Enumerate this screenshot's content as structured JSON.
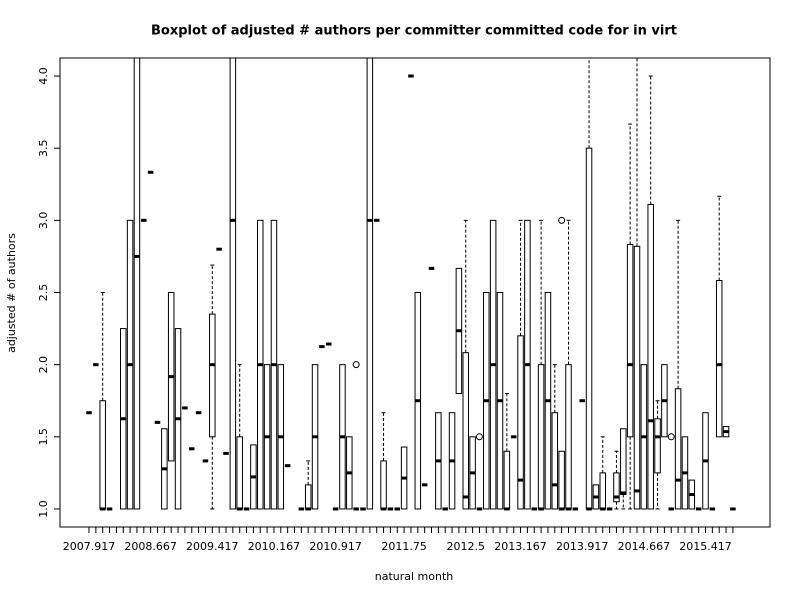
{
  "chart_data": {
    "type": "boxplot",
    "title": "Boxplot of adjusted # authors per committer committed code for in virt",
    "x_label": "natural month",
    "y_label": "adjusted # of authors",
    "categories": [
      "2007.917",
      null,
      null,
      null,
      null,
      null,
      null,
      null,
      null,
      "2008.667",
      null,
      null,
      null,
      null,
      null,
      null,
      null,
      null,
      "2009.417",
      null,
      null,
      null,
      null,
      null,
      null,
      null,
      null,
      "2010.167",
      null,
      null,
      null,
      null,
      null,
      null,
      null,
      null,
      "2010.917",
      null,
      null,
      null,
      null,
      null,
      null,
      null,
      null,
      null,
      "2011.75",
      null,
      null,
      null,
      null,
      null,
      null,
      null,
      null,
      "2012.5",
      null,
      null,
      null,
      null,
      null,
      null,
      null,
      "2013.167",
      null,
      null,
      null,
      null,
      null,
      null,
      null,
      null,
      "2013.917",
      null,
      null,
      null,
      null,
      null,
      null,
      null,
      null,
      "2014.667",
      null,
      null,
      null,
      null,
      null,
      null,
      null,
      null,
      "2015.417",
      null,
      null,
      null,
      null
    ],
    "boxes": [
      [
        1.667,
        1.667,
        1.667,
        1.667,
        1.667
      ],
      [
        2,
        2,
        2,
        2,
        2
      ],
      [
        1,
        1,
        1,
        1.75,
        2.5
      ],
      [
        1,
        1,
        1,
        1,
        1
      ],
      null,
      [
        1,
        1,
        1.625,
        2.25,
        2.25
      ],
      [
        1,
        1,
        2,
        3,
        3
      ],
      [
        1,
        1,
        2.75,
        4.3,
        4.3
      ],
      [
        3,
        3,
        3,
        3,
        3
      ],
      [
        3.333,
        3.333,
        3.333,
        3.333,
        3.333
      ],
      [
        1.6,
        1.6,
        1.6,
        1.6,
        1.6
      ],
      [
        1,
        1,
        1.278,
        1.556,
        1.556
      ],
      [
        1.333,
        1.333,
        1.917,
        2.5,
        2.5
      ],
      [
        1,
        1,
        1.625,
        2.25,
        2.25
      ],
      [
        1.7,
        1.7,
        1.7,
        1.7,
        1.7
      ],
      [
        1.417,
        1.417,
        1.417,
        1.417,
        1.417
      ],
      [
        1.667,
        1.667,
        1.667,
        1.667,
        1.667
      ],
      [
        1.333,
        1.333,
        1.333,
        1.333,
        1.333
      ],
      [
        1,
        1.5,
        2,
        2.35,
        2.69
      ],
      [
        2.8,
        2.8,
        2.8,
        2.8,
        2.8
      ],
      [
        1.385,
        1.385,
        1.385,
        1.385,
        1.385
      ],
      [
        1,
        1,
        3,
        4.3,
        4.3
      ],
      [
        1,
        1,
        1,
        1.5,
        2
      ],
      [
        1,
        1,
        1,
        1,
        1
      ],
      [
        1,
        1,
        1.222,
        1.444,
        1.444
      ],
      [
        1,
        1,
        2,
        3,
        3
      ],
      [
        1,
        1,
        1.5,
        2,
        2
      ],
      [
        1,
        1,
        2,
        3,
        3
      ],
      [
        1,
        1,
        1.5,
        2,
        2
      ],
      [
        1.3,
        1.3,
        1.3,
        1.3,
        1.3
      ],
      null,
      [
        1,
        1,
        1,
        1,
        1
      ],
      [
        1,
        1,
        1,
        1.167,
        1.333
      ],
      [
        1,
        1,
        1.5,
        2,
        2
      ],
      [
        2.125,
        2.125,
        2.125,
        2.125,
        2.125
      ],
      [
        2.143,
        2.143,
        2.143,
        2.143,
        2.143
      ],
      [
        1,
        1,
        1,
        1,
        1
      ],
      [
        1,
        1,
        1.5,
        2,
        2
      ],
      [
        1,
        1,
        1.25,
        1.5,
        1.5
      ],
      [
        1,
        1,
        1,
        1,
        1
      ],
      [
        1,
        1,
        1,
        1,
        1
      ],
      [
        1,
        1,
        3,
        4.3,
        4.3
      ],
      [
        3,
        3,
        3,
        3,
        3
      ],
      [
        1,
        1,
        1,
        1.333,
        1.667
      ],
      [
        1,
        1,
        1,
        1,
        1
      ],
      [
        1,
        1,
        1,
        1,
        1
      ],
      [
        1,
        1,
        1.214,
        1.429,
        1.429
      ],
      [
        4,
        4,
        4,
        4,
        4
      ],
      [
        1,
        1,
        1.75,
        2.5,
        2.5
      ],
      [
        1.167,
        1.167,
        1.167,
        1.167,
        1.167
      ],
      [
        2.667,
        2.667,
        2.667,
        2.667,
        2.667
      ],
      [
        1,
        1,
        1.333,
        1.667,
        1.667
      ],
      [
        1,
        1,
        1,
        1,
        1
      ],
      [
        1,
        1,
        1.333,
        1.667,
        1.667
      ],
      [
        1.8,
        1.8,
        2.235,
        2.667,
        2.667
      ],
      [
        1,
        1,
        1.083,
        2.083,
        3
      ],
      [
        1,
        1,
        1.25,
        1.5,
        1.5
      ],
      [
        1,
        1,
        1,
        1,
        1
      ],
      [
        1,
        1,
        1.75,
        2.5,
        2.5
      ],
      [
        1,
        1,
        2,
        3,
        3
      ],
      [
        1,
        1,
        1.75,
        2.5,
        2.5
      ],
      [
        1,
        1,
        1,
        1.4,
        1.8
      ],
      [
        1.5,
        1.5,
        1.5,
        1.5,
        1.5
      ],
      [
        1,
        1,
        1.2,
        2.2,
        3
      ],
      [
        1,
        1,
        2,
        3,
        3
      ],
      [
        1,
        1,
        1,
        1,
        1
      ],
      [
        1,
        1,
        1,
        2,
        3
      ],
      [
        1,
        1,
        1.75,
        2.5,
        2.5
      ],
      [
        1,
        1,
        1.167,
        1.667,
        2
      ],
      [
        1,
        1,
        1,
        1.4,
        1.4
      ],
      [
        1,
        1,
        1,
        2,
        3
      ],
      [
        1,
        1,
        1,
        1,
        1
      ],
      [
        1.75,
        1.75,
        1.75,
        1.75,
        1.75
      ],
      [
        1,
        1,
        1,
        3.5,
        4.3
      ],
      [
        1,
        1,
        1.083,
        1.167,
        1.167
      ],
      [
        1,
        1,
        1,
        1.25,
        1.5
      ],
      [
        1,
        1,
        1,
        1,
        1
      ],
      [
        1,
        1.05,
        1.083,
        1.25,
        1.4
      ],
      [
        1,
        1.1,
        1.111,
        1.556,
        1.556
      ],
      [
        1,
        1.5,
        2,
        2.833,
        3.667
      ],
      [
        1,
        1,
        1.125,
        2.82,
        4.3
      ],
      [
        1,
        1,
        1.5,
        2,
        2
      ],
      [
        1,
        1,
        1.611,
        3.11,
        4
      ],
      [
        1,
        1.25,
        1.5,
        1.625,
        1.75
      ],
      [
        1.5,
        1.5,
        1.75,
        2,
        2
      ],
      [
        1,
        1,
        1,
        1,
        1
      ],
      [
        1,
        1,
        1.2,
        1.833,
        3
      ],
      [
        1,
        1,
        1.25,
        1.5,
        1.5
      ],
      [
        1,
        1,
        1.1,
        1.2,
        1.2
      ],
      [
        1,
        1,
        1,
        1,
        1
      ],
      [
        1,
        1,
        1.333,
        1.667,
        1.667
      ],
      [
        1,
        1,
        1,
        1,
        1
      ],
      [
        1.5,
        1.5,
        2,
        2.583,
        3.167
      ],
      [
        1.5,
        1.5,
        1.536,
        1.571,
        1.571
      ],
      [
        1,
        1,
        1,
        1,
        1
      ]
    ],
    "outliers": [
      [
        39,
        2
      ],
      [
        57,
        1.5
      ],
      [
        69,
        3
      ],
      [
        85,
        1.5
      ]
    ],
    "ylim": [
      0.875,
      4.125
    ],
    "yticks": [
      {
        "value": 1,
        "label": "1.0"
      },
      1.5,
      {
        "value": 2,
        "label": "2.0"
      },
      2.5,
      {
        "value": 3,
        "label": "3.0"
      },
      3.5,
      {
        "value": 4,
        "label": "4.0"
      }
    ],
    "color": "#000000"
  }
}
